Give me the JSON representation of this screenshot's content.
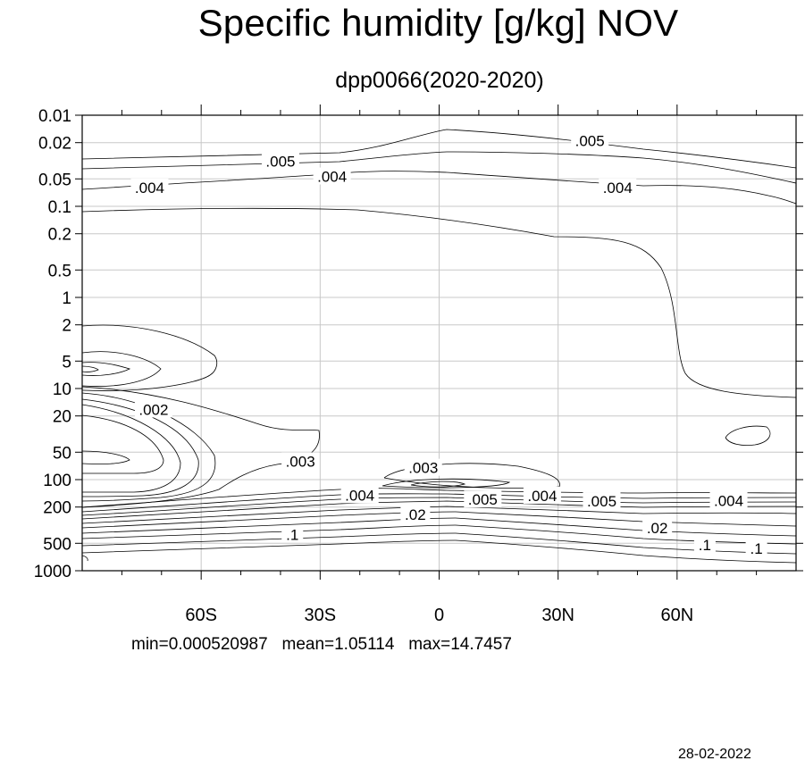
{
  "chart_data": {
    "type": "contour",
    "title": "Specific humidity [g/kg] NOV",
    "subtitle": "dpp0066(2020-2020)",
    "x_axis": {
      "range": [
        -90,
        90
      ],
      "ticks": [
        {
          "value": -60,
          "label": "60S"
        },
        {
          "value": -30,
          "label": "30S"
        },
        {
          "value": 0,
          "label": "0"
        },
        {
          "value": 30,
          "label": "30N"
        },
        {
          "value": 60,
          "label": "60N"
        }
      ],
      "grid": true
    },
    "y_axis": {
      "scale": "log",
      "inverted": true,
      "range": [
        0.01,
        1000
      ],
      "ticks": [
        {
          "value": 0.01,
          "label": "0.01"
        },
        {
          "value": 0.02,
          "label": "0.02"
        },
        {
          "value": 0.05,
          "label": "0.05"
        },
        {
          "value": 0.1,
          "label": "0.1"
        },
        {
          "value": 0.2,
          "label": "0.2"
        },
        {
          "value": 0.5,
          "label": "0.5"
        },
        {
          "value": 1,
          "label": "1"
        },
        {
          "value": 2,
          "label": "2"
        },
        {
          "value": 5,
          "label": "5"
        },
        {
          "value": 10,
          "label": "10"
        },
        {
          "value": 20,
          "label": "20"
        },
        {
          "value": 50,
          "label": "50"
        },
        {
          "value": 100,
          "label": "100"
        },
        {
          "value": 200,
          "label": "200"
        },
        {
          "value": 500,
          "label": "500"
        },
        {
          "value": 1000,
          "label": "1000"
        }
      ],
      "grid": true
    },
    "contour_labels": [
      {
        "text": ".005",
        "lat": -40,
        "p": 0.032
      },
      {
        "text": ".005",
        "lat": 38,
        "p": 0.019
      },
      {
        "text": ".004",
        "lat": -73,
        "p": 0.062
      },
      {
        "text": ".004",
        "lat": -27,
        "p": 0.047
      },
      {
        "text": ".004",
        "lat": 45,
        "p": 0.062
      },
      {
        "text": ".002",
        "lat": -72,
        "p": 17
      },
      {
        "text": ".003",
        "lat": -35,
        "p": 63
      },
      {
        "text": ".003",
        "lat": -4,
        "p": 74
      },
      {
        "text": ".004",
        "lat": -20,
        "p": 148
      },
      {
        "text": ".005",
        "lat": 11,
        "p": 165
      },
      {
        "text": ".004",
        "lat": 26,
        "p": 150
      },
      {
        "text": ".005",
        "lat": 41,
        "p": 172
      },
      {
        "text": ".004",
        "lat": 73,
        "p": 170
      },
      {
        "text": ".02",
        "lat": -6,
        "p": 240
      },
      {
        "text": ".02",
        "lat": 55,
        "p": 340
      },
      {
        "text": ".1",
        "lat": -37,
        "p": 400
      },
      {
        "text": ".1",
        "lat": 67,
        "p": 520
      },
      {
        "text": ".1",
        "lat": 80,
        "p": 570
      }
    ],
    "stats": "min=0.000520987   mean=1.05114   max=14.7457",
    "date": "28-02-2022"
  }
}
